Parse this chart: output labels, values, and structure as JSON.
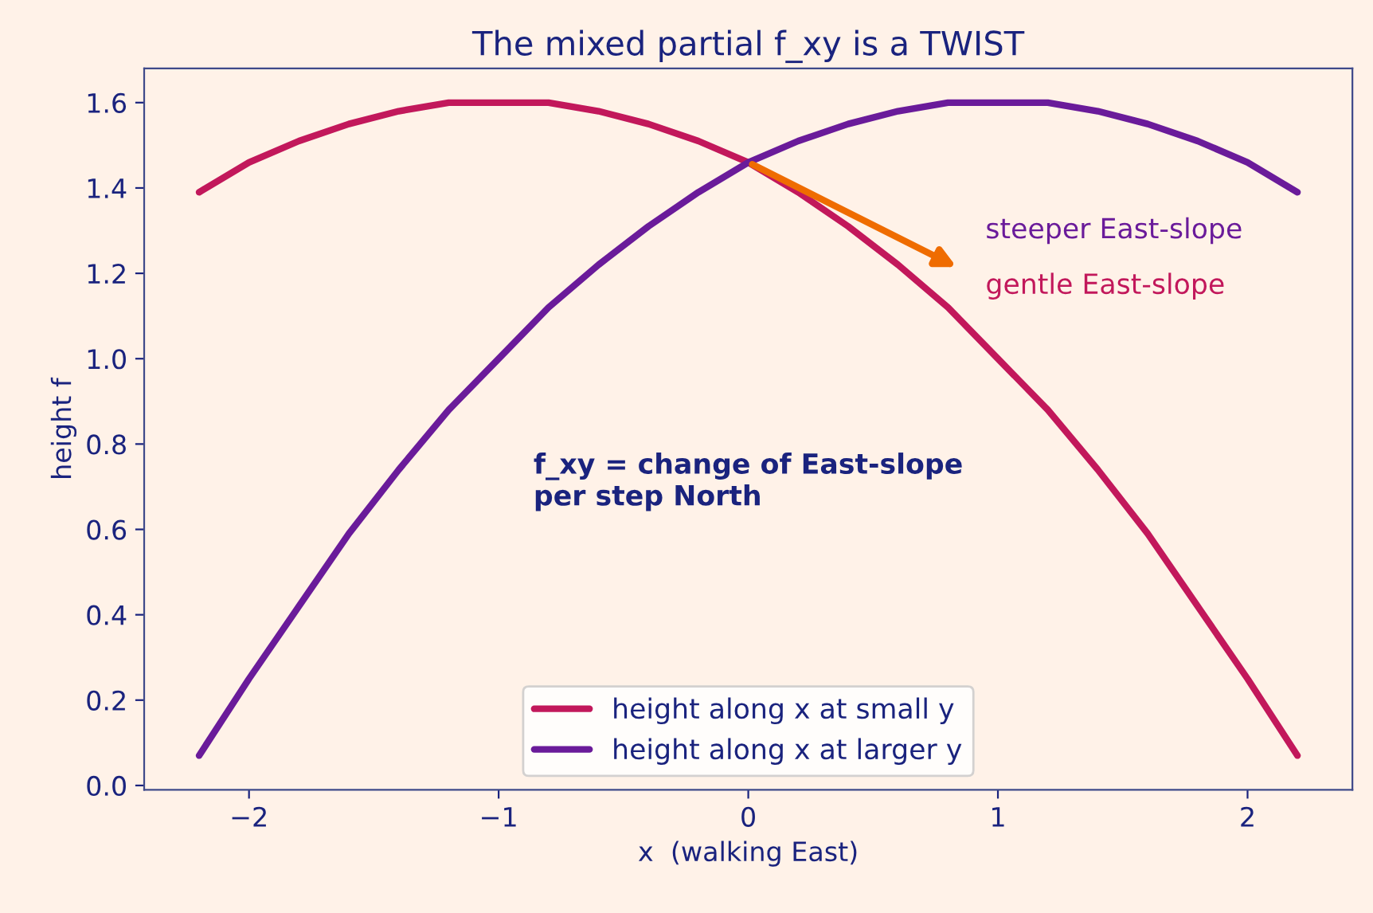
{
  "chart_data": {
    "type": "line",
    "title": "The mixed partial f_xy is a TWIST",
    "xlabel": "x  (walking East)",
    "ylabel": "height f",
    "x": [
      -2.2,
      -2.0,
      -1.8,
      -1.6,
      -1.4,
      -1.2,
      -1.0,
      -0.8,
      -0.6,
      -0.4,
      -0.2,
      0.0,
      0.2,
      0.4,
      0.6,
      0.8,
      1.0,
      1.2,
      1.4,
      1.6,
      1.8,
      2.0,
      2.2
    ],
    "series": [
      {
        "name": "height along x at small y",
        "color": "#c2185b",
        "values": [
          1.39,
          1.46,
          1.51,
          1.55,
          1.58,
          1.6,
          1.6,
          1.6,
          1.58,
          1.55,
          1.51,
          1.46,
          1.39,
          1.31,
          1.22,
          1.12,
          1.0,
          0.88,
          0.74,
          0.59,
          0.42,
          0.25,
          0.07
        ]
      },
      {
        "name": "height along x at larger y",
        "color": "#6a1b9a",
        "values": [
          0.07,
          0.25,
          0.42,
          0.59,
          0.74,
          0.88,
          1.0,
          1.12,
          1.22,
          1.31,
          1.39,
          1.46,
          1.51,
          1.55,
          1.58,
          1.6,
          1.6,
          1.6,
          1.58,
          1.55,
          1.51,
          1.46,
          1.39
        ]
      }
    ],
    "annotations": [
      "steeper East-slope",
      "gentle East-slope",
      "f_xy = change of East-slope\nper step North"
    ],
    "xlim": [
      -2.42,
      2.42
    ],
    "ylim": [
      -0.01,
      1.68
    ],
    "xticks": [
      {
        "value": -2,
        "label": "−2"
      },
      {
        "value": -1,
        "label": "−1"
      },
      0,
      1,
      2
    ],
    "yticks": [
      {
        "value": 0,
        "label": "0.0"
      },
      0.2,
      0.4,
      0.6,
      0.8,
      {
        "value": 1,
        "label": "1.0"
      },
      1.2,
      1.4,
      1.6
    ],
    "legend": "bottom",
    "grid": false,
    "marker": "none",
    "line_style": "solid"
  }
}
